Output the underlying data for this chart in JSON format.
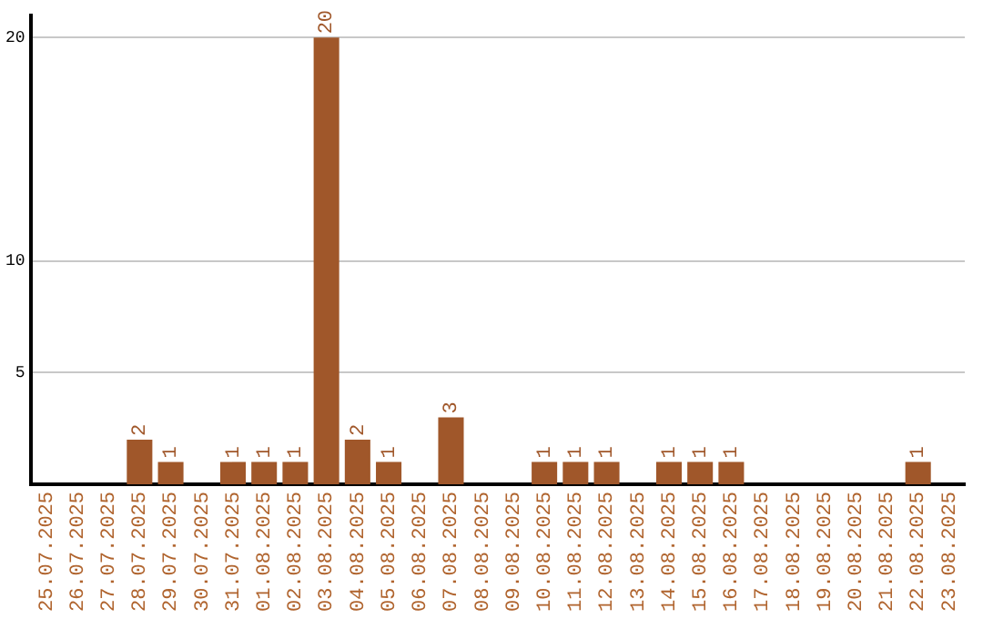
{
  "chart_data": {
    "type": "bar",
    "categories": [
      "25.07.2025",
      "26.07.2025",
      "27.07.2025",
      "28.07.2025",
      "29.07.2025",
      "30.07.2025",
      "31.07.2025",
      "01.08.2025",
      "02.08.2025",
      "03.08.2025",
      "04.08.2025",
      "05.08.2025",
      "06.08.2025",
      "07.08.2025",
      "08.08.2025",
      "09.08.2025",
      "10.08.2025",
      "11.08.2025",
      "12.08.2025",
      "13.08.2025",
      "14.08.2025",
      "15.08.2025",
      "16.08.2025",
      "17.08.2025",
      "18.08.2025",
      "19.08.2025",
      "20.08.2025",
      "21.08.2025",
      "22.08.2025",
      "23.08.2025"
    ],
    "values": [
      0,
      0,
      0,
      2,
      1,
      0,
      1,
      1,
      1,
      20,
      2,
      1,
      0,
      3,
      0,
      0,
      1,
      1,
      1,
      0,
      1,
      1,
      1,
      0,
      0,
      0,
      0,
      0,
      1,
      0
    ],
    "value_labels": [
      null,
      null,
      null,
      "2",
      "1",
      null,
      "1",
      "1",
      "1",
      "20",
      "2",
      "1",
      null,
      "3",
      null,
      null,
      "1",
      "1",
      "1",
      null,
      "1",
      "1",
      "1",
      null,
      null,
      null,
      null,
      null,
      "1",
      null
    ],
    "color": "#a0572a",
    "ylim": [
      0,
      21
    ],
    "yticks": [
      5,
      10,
      20
    ],
    "grid": "y",
    "legend": false
  }
}
